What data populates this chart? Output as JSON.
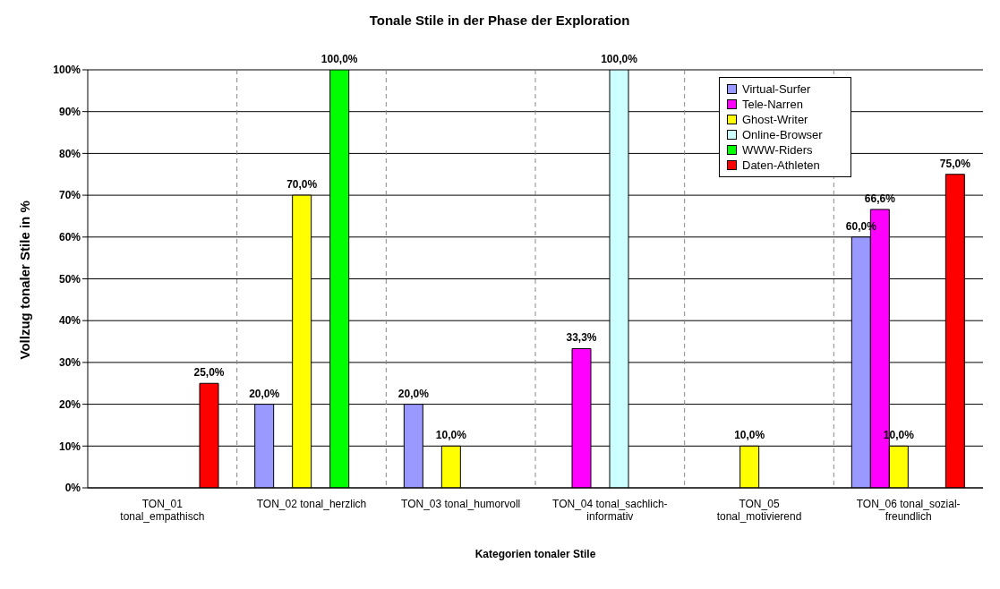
{
  "chart_data": {
    "type": "bar",
    "title": "Tonale Stile in der Phase der Exploration",
    "xlabel": "Kategorien tonaler Stile",
    "ylabel": "Vollzug tonaler Stile in %",
    "categories": [
      "TON_01 tonal_empathisch",
      "TON_02 tonal_herzlich",
      "TON_03 tonal_humorvoll",
      "TON_04 tonal_sachlich-informativ",
      "TON_05 tonal_motivierend",
      "TON_06 tonal_sozial-freundlich"
    ],
    "series": [
      {
        "name": "Virtual-Surfer",
        "color": "#9999ff",
        "values": [
          null,
          20,
          20,
          null,
          null,
          60
        ],
        "value_labels": [
          null,
          "20,0%",
          "20,0%",
          null,
          null,
          "60,0%"
        ]
      },
      {
        "name": "Tele-Narren",
        "color": "#ff00ff",
        "values": [
          null,
          null,
          null,
          33.3,
          null,
          66.6
        ],
        "value_labels": [
          null,
          null,
          null,
          "33,3%",
          null,
          "66,6%"
        ]
      },
      {
        "name": "Ghost-Writer",
        "color": "#ffff00",
        "values": [
          null,
          70,
          10,
          null,
          10,
          10
        ],
        "value_labels": [
          null,
          "70,0%",
          "10,0%",
          null,
          "10,0%",
          "10,0%"
        ]
      },
      {
        "name": "Online-Browser",
        "color": "#ccffff",
        "values": [
          null,
          null,
          null,
          100,
          null,
          null
        ],
        "value_labels": [
          null,
          null,
          null,
          "100,0%",
          null,
          null
        ]
      },
      {
        "name": "WWW-Riders",
        "color": "#00ff00",
        "values": [
          null,
          100,
          null,
          null,
          null,
          null
        ],
        "value_labels": [
          null,
          "100,0%",
          null,
          null,
          null,
          null
        ]
      },
      {
        "name": "Daten-Athleten",
        "color": "#ff0000",
        "values": [
          25,
          null,
          null,
          null,
          null,
          75
        ],
        "value_labels": [
          "25,0%",
          null,
          null,
          null,
          null,
          "75,0%"
        ]
      }
    ],
    "ylim": [
      0,
      100
    ],
    "yticks": [
      {
        "value": 0,
        "label": "0%"
      },
      {
        "value": 10,
        "label": "10%"
      },
      {
        "value": 20,
        "label": "20%"
      },
      {
        "value": 30,
        "label": "30%"
      },
      {
        "value": 40,
        "label": "40%"
      },
      {
        "value": 50,
        "label": "50%"
      },
      {
        "value": 60,
        "label": "60%"
      },
      {
        "value": 70,
        "label": "70%"
      },
      {
        "value": 80,
        "label": "80%"
      },
      {
        "value": 90,
        "label": "90%"
      },
      {
        "value": 100,
        "label": "100%"
      }
    ],
    "grid": true,
    "legend": "top right"
  }
}
